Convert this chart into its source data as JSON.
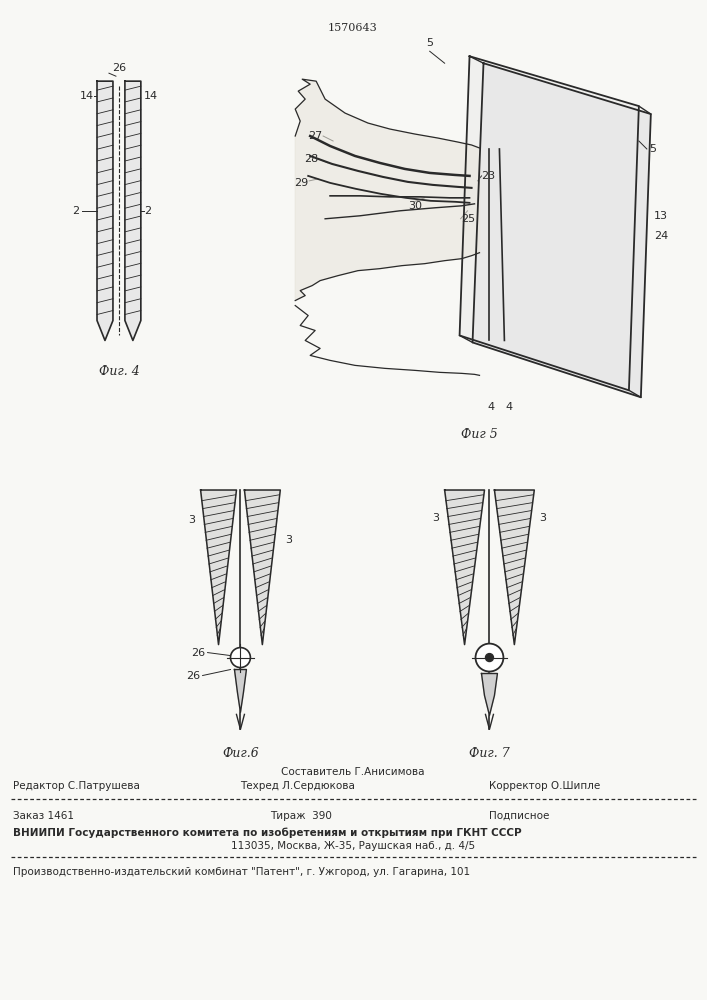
{
  "patent_number": "1570643",
  "bg_color": "#f8f8f5",
  "line_color": "#2a2a2a",
  "fig4_label": "Фиг. 4",
  "fig5_label": "Фиг 5",
  "fig6_label": "Фиг.6",
  "fig7_label": "Фиг. 7",
  "footer_line0_col2": "Составитель Г.Анисимова",
  "footer_line1_col1": "Редактор С.Патрушева",
  "footer_line1_col2": "Техред Л.Сердюкова",
  "footer_line1_col3": "Корректор О.Шипле",
  "footer_zakaz": "Заказ 1461",
  "footer_tirazh": "Тираж  390",
  "footer_podpisnoe": "Подписное",
  "footer_vnipi": "ВНИИПИ Государственного комитета по изобретениям и открытиям при ГКНТ СССР",
  "footer_address": "113035, Москва, Ж-35, Раушская наб., д. 4/5",
  "footer_kombinat": "Производственно-издательский комбинат \"Патент\", г. Ужгород, ул. Гагарина, 101"
}
